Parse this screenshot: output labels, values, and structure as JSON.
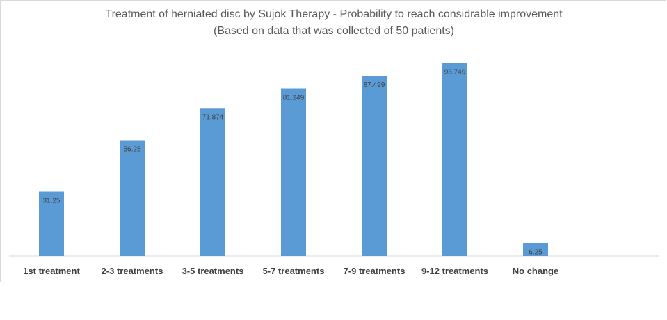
{
  "chart_data": {
    "type": "bar",
    "title": "Treatment of herniated disc by Sujok Therapy - Probability to reach considrable improvement",
    "subtitle": "(Based on data that was collected of 50 patients)",
    "categories": [
      "1st treatment",
      "2-3 treatments",
      "3-5 treatments",
      "5-7 treatments",
      "7-9 treatments",
      "9-12 treatments",
      "No change"
    ],
    "values": [
      31.25,
      56.25,
      71.874,
      81.249,
      87.499,
      93.749,
      6.25
    ],
    "data_labels": [
      "31.25",
      "56.25",
      "71.874",
      "81.249",
      "87.499",
      "93.749",
      "6.25"
    ],
    "ylim": [
      0,
      100
    ],
    "grid": false,
    "legend": "none",
    "bar_color": "#5b9bd5"
  }
}
